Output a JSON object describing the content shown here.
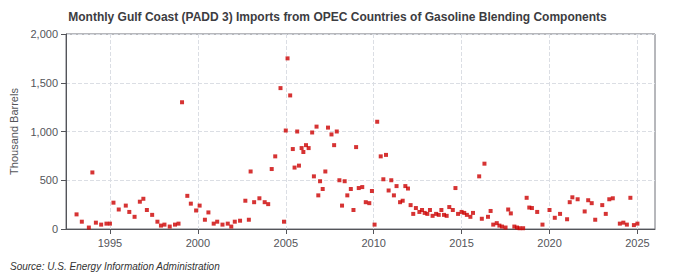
{
  "chart_data": {
    "type": "scatter",
    "title": "Monthly Gulf Coast (PADD 3) Imports from OPEC Countries of Gasoline Blending Components",
    "ylabel": "Thousand Barrels",
    "annotations": [
      "Source: U.S. Energy Information Administration"
    ],
    "color": "#cc0000",
    "marker": "square",
    "grid": true,
    "xlim": [
      1992.5,
      2026.0
    ],
    "xticks": [
      1995,
      2000,
      2005,
      2010,
      2015,
      2020,
      2025
    ],
    "ylim": [
      0,
      2000
    ],
    "yticks": [
      0,
      500,
      {
        "value": 1000,
        "label": "1,000"
      },
      {
        "value": 1500,
        "label": "1,500"
      },
      {
        "value": 2000,
        "label": "2,000"
      }
    ],
    "x": [
      1993.1,
      1993.4,
      1993.8,
      1994.0,
      1994.2,
      1994.5,
      1994.8,
      1995.0,
      1995.2,
      1995.5,
      1995.9,
      1996.1,
      1996.4,
      1996.7,
      1996.9,
      1997.1,
      1997.4,
      1997.7,
      1997.9,
      1998.1,
      1998.4,
      1998.7,
      1998.9,
      1999.1,
      1999.4,
      1999.6,
      1999.9,
      2000.1,
      2000.4,
      2000.6,
      2000.9,
      2001.1,
      2001.4,
      2001.7,
      2001.9,
      2002.1,
      2002.4,
      2002.7,
      2002.9,
      2003.0,
      2003.2,
      2003.5,
      2003.8,
      2004.0,
      2004.2,
      2004.4,
      2004.7,
      2004.9,
      2005.0,
      2005.1,
      2005.25,
      2005.4,
      2005.5,
      2005.65,
      2005.75,
      2005.9,
      2006.0,
      2006.15,
      2006.3,
      2006.5,
      2006.6,
      2006.75,
      2006.85,
      2006.95,
      2007.1,
      2007.25,
      2007.4,
      2007.6,
      2007.75,
      2007.9,
      2008.05,
      2008.2,
      2008.35,
      2008.5,
      2008.7,
      2008.85,
      2009.0,
      2009.15,
      2009.35,
      2009.55,
      2009.75,
      2009.9,
      2010.05,
      2010.2,
      2010.4,
      2010.55,
      2010.7,
      2010.85,
      2011.0,
      2011.15,
      2011.3,
      2011.5,
      2011.65,
      2011.8,
      2011.95,
      2012.1,
      2012.25,
      2012.4,
      2012.6,
      2012.75,
      2012.9,
      2013.05,
      2013.2,
      2013.35,
      2013.55,
      2013.7,
      2013.85,
      2014.0,
      2014.15,
      2014.3,
      2014.5,
      2014.65,
      2014.8,
      2015.0,
      2015.15,
      2015.3,
      2015.5,
      2015.65,
      2016.0,
      2016.15,
      2016.3,
      2016.5,
      2016.65,
      2016.8,
      2017.0,
      2017.15,
      2017.3,
      2017.5,
      2017.65,
      2017.8,
      2018.0,
      2018.15,
      2018.3,
      2018.5,
      2018.7,
      2018.85,
      2019.0,
      2019.3,
      2019.6,
      2020.0,
      2020.3,
      2020.6,
      2021.0,
      2021.15,
      2021.3,
      2021.6,
      2022.0,
      2022.2,
      2022.4,
      2022.6,
      2023.0,
      2023.2,
      2023.4,
      2023.6,
      2024.0,
      2024.2,
      2024.4,
      2024.6,
      2024.8,
      2025.0
    ],
    "values": [
      150,
      75,
      15,
      580,
      65,
      45,
      55,
      55,
      270,
      200,
      240,
      175,
      125,
      280,
      310,
      195,
      145,
      75,
      35,
      45,
      25,
      45,
      55,
      1300,
      340,
      260,
      190,
      240,
      95,
      170,
      55,
      75,
      45,
      55,
      25,
      75,
      85,
      290,
      95,
      590,
      275,
      315,
      275,
      255,
      615,
      745,
      1445,
      75,
      1010,
      1750,
      1370,
      820,
      630,
      1000,
      650,
      830,
      790,
      860,
      830,
      990,
      540,
      1050,
      345,
      490,
      410,
      590,
      1040,
      970,
      860,
      1000,
      500,
      240,
      490,
      345,
      410,
      195,
      840,
      420,
      430,
      275,
      265,
      390,
      45,
      1100,
      745,
      510,
      760,
      395,
      500,
      345,
      440,
      275,
      290,
      440,
      415,
      245,
      155,
      215,
      175,
      195,
      165,
      155,
      195,
      135,
      155,
      145,
      195,
      145,
      135,
      225,
      195,
      420,
      155,
      175,
      165,
      145,
      125,
      165,
      540,
      105,
      670,
      125,
      185,
      45,
      60,
      35,
      25,
      15,
      200,
      160,
      25,
      15,
      8,
      8,
      320,
      220,
      215,
      175,
      45,
      195,
      115,
      155,
      100,
      275,
      325,
      305,
      180,
      295,
      265,
      95,
      245,
      155,
      305,
      315,
      55,
      65,
      45,
      320,
      40,
      55
    ]
  }
}
